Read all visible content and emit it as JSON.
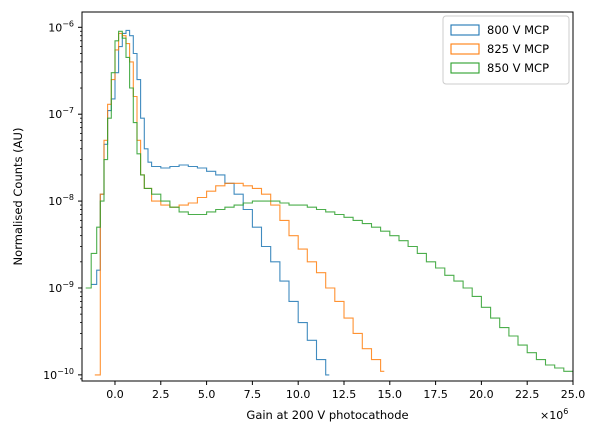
{
  "chart_data": {
    "type": "histogram-step",
    "xlabel": "Gain at 200 V photocathode",
    "ylabel": "Normalised Counts (AU)",
    "x_multiplier_label": "×10",
    "x_multiplier_exponent": "6",
    "xlim": [
      -1.8,
      25.0
    ],
    "ylim": [
      8.5e-11,
      1.5e-06
    ],
    "yscale": "log",
    "x_ticks": [
      0.0,
      2.5,
      5.0,
      7.5,
      10.0,
      12.5,
      15.0,
      17.5,
      20.0,
      22.5,
      25.0
    ],
    "x_tick_labels": [
      "0.0",
      "2.5",
      "5.0",
      "7.5",
      "10.0",
      "12.5",
      "15.0",
      "17.5",
      "20.0",
      "22.5",
      "25.0"
    ],
    "y_ticks": [
      1e-10,
      1e-09,
      1e-08,
      1e-07,
      1e-06
    ],
    "y_tick_base": "10",
    "y_tick_exponents": [
      "−10",
      "−9",
      "−8",
      "−7",
      "−6"
    ],
    "legend_position": "top-right",
    "series": [
      {
        "name": "800 V MCP",
        "color": "#1f77b4",
        "points": [
          [
            -1.3,
            1.1e-09
          ],
          [
            -1.0,
            1.6e-09
          ],
          [
            -0.8,
            1.2e-08
          ],
          [
            -0.6,
            4.5e-08
          ],
          [
            -0.4,
            1.1e-07
          ],
          [
            -0.2,
            1.5e-07
          ],
          [
            0.0,
            3e-07
          ],
          [
            0.2,
            6e-07
          ],
          [
            0.4,
            8.5e-07
          ],
          [
            0.6,
            9.2e-07
          ],
          [
            0.8,
            8e-07
          ],
          [
            1.0,
            5e-07
          ],
          [
            1.2,
            2.5e-07
          ],
          [
            1.4,
            9e-08
          ],
          [
            1.6,
            4e-08
          ],
          [
            1.8,
            2.8e-08
          ],
          [
            2.0,
            2.5e-08
          ],
          [
            2.5,
            2.4e-08
          ],
          [
            3.0,
            2.5e-08
          ],
          [
            3.5,
            2.6e-08
          ],
          [
            4.0,
            2.5e-08
          ],
          [
            4.5,
            2.4e-08
          ],
          [
            5.0,
            2.2e-08
          ],
          [
            5.5,
            2e-08
          ],
          [
            6.0,
            1.6e-08
          ],
          [
            6.5,
            1.2e-08
          ],
          [
            7.0,
            8e-09
          ],
          [
            7.5,
            5e-09
          ],
          [
            8.0,
            3e-09
          ],
          [
            8.5,
            2e-09
          ],
          [
            9.0,
            1.2e-09
          ],
          [
            9.5,
            7e-10
          ],
          [
            10.0,
            4e-10
          ],
          [
            10.5,
            2.5e-10
          ],
          [
            11.0,
            1.5e-10
          ],
          [
            11.5,
            1e-10
          ]
        ]
      },
      {
        "name": "825 V MCP",
        "color": "#ff7f0e",
        "points": [
          [
            -1.1,
            1e-10
          ],
          [
            -0.8,
            1.2e-08
          ],
          [
            -0.6,
            5e-08
          ],
          [
            -0.4,
            1.3e-07
          ],
          [
            -0.2,
            2.5e-07
          ],
          [
            0.0,
            5.5e-07
          ],
          [
            0.2,
            8.5e-07
          ],
          [
            0.4,
            8e-07
          ],
          [
            0.6,
            6.5e-07
          ],
          [
            0.8,
            4e-07
          ],
          [
            1.0,
            1.6e-07
          ],
          [
            1.2,
            5e-08
          ],
          [
            1.4,
            2e-08
          ],
          [
            1.6,
            1.4e-08
          ],
          [
            2.0,
            1e-08
          ],
          [
            2.5,
            9e-09
          ],
          [
            3.0,
            8.5e-09
          ],
          [
            3.5,
            9e-09
          ],
          [
            4.0,
            9.5e-09
          ],
          [
            4.5,
            1.1e-08
          ],
          [
            5.0,
            1.3e-08
          ],
          [
            5.5,
            1.5e-08
          ],
          [
            6.0,
            1.6e-08
          ],
          [
            6.5,
            1.6e-08
          ],
          [
            7.0,
            1.5e-08
          ],
          [
            7.5,
            1.4e-08
          ],
          [
            8.0,
            1.2e-08
          ],
          [
            8.5,
            9e-09
          ],
          [
            9.0,
            6e-09
          ],
          [
            9.5,
            4e-09
          ],
          [
            10.0,
            2.8e-09
          ],
          [
            10.5,
            2e-09
          ],
          [
            11.0,
            1.5e-09
          ],
          [
            11.5,
            1e-09
          ],
          [
            12.0,
            7e-10
          ],
          [
            12.5,
            4.5e-10
          ],
          [
            13.0,
            3e-10
          ],
          [
            13.5,
            2e-10
          ],
          [
            14.0,
            1.5e-10
          ],
          [
            14.5,
            1.1e-10
          ]
        ]
      },
      {
        "name": "850 V MCP",
        "color": "#2ca02c",
        "points": [
          [
            -1.6,
            1e-09
          ],
          [
            -1.3,
            2.5e-09
          ],
          [
            -1.0,
            5e-09
          ],
          [
            -0.8,
            1e-08
          ],
          [
            -0.6,
            3e-08
          ],
          [
            -0.4,
            9e-08
          ],
          [
            -0.2,
            3e-07
          ],
          [
            0.0,
            7e-07
          ],
          [
            0.2,
            9e-07
          ],
          [
            0.4,
            7.5e-07
          ],
          [
            0.6,
            4.5e-07
          ],
          [
            0.8,
            2e-07
          ],
          [
            1.0,
            8e-08
          ],
          [
            1.2,
            3.5e-08
          ],
          [
            1.4,
            2e-08
          ],
          [
            1.6,
            1.4e-08
          ],
          [
            2.0,
            1.2e-08
          ],
          [
            2.5,
            1e-08
          ],
          [
            3.0,
            8.5e-09
          ],
          [
            3.5,
            7.5e-09
          ],
          [
            4.0,
            7e-09
          ],
          [
            4.5,
            7e-09
          ],
          [
            5.0,
            7.5e-09
          ],
          [
            5.5,
            8e-09
          ],
          [
            6.0,
            8.5e-09
          ],
          [
            6.5,
            9e-09
          ],
          [
            7.0,
            9.5e-09
          ],
          [
            7.5,
            1e-08
          ],
          [
            8.0,
            1e-08
          ],
          [
            8.5,
            1e-08
          ],
          [
            9.0,
            9.5e-09
          ],
          [
            9.5,
            9e-09
          ],
          [
            10.0,
            9e-09
          ],
          [
            10.5,
            8.5e-09
          ],
          [
            11.0,
            8e-09
          ],
          [
            11.5,
            7.5e-09
          ],
          [
            12.0,
            7e-09
          ],
          [
            12.5,
            6.5e-09
          ],
          [
            13.0,
            6e-09
          ],
          [
            13.5,
            5.5e-09
          ],
          [
            14.0,
            5e-09
          ],
          [
            14.5,
            4.5e-09
          ],
          [
            15.0,
            4e-09
          ],
          [
            15.5,
            3.5e-09
          ],
          [
            16.0,
            3e-09
          ],
          [
            16.5,
            2.5e-09
          ],
          [
            17.0,
            2e-09
          ],
          [
            17.5,
            1.7e-09
          ],
          [
            18.0,
            1.4e-09
          ],
          [
            18.5,
            1.2e-09
          ],
          [
            19.0,
            1e-09
          ],
          [
            19.5,
            8e-10
          ],
          [
            20.0,
            6e-10
          ],
          [
            20.5,
            4.5e-10
          ],
          [
            21.0,
            3.5e-10
          ],
          [
            21.5,
            2.8e-10
          ],
          [
            22.0,
            2.2e-10
          ],
          [
            22.5,
            1.8e-10
          ],
          [
            23.0,
            1.5e-10
          ],
          [
            23.5,
            1.3e-10
          ],
          [
            24.0,
            1.2e-10
          ],
          [
            24.5,
            1.1e-10
          ],
          [
            25.0,
            1e-10
          ]
        ]
      }
    ]
  }
}
